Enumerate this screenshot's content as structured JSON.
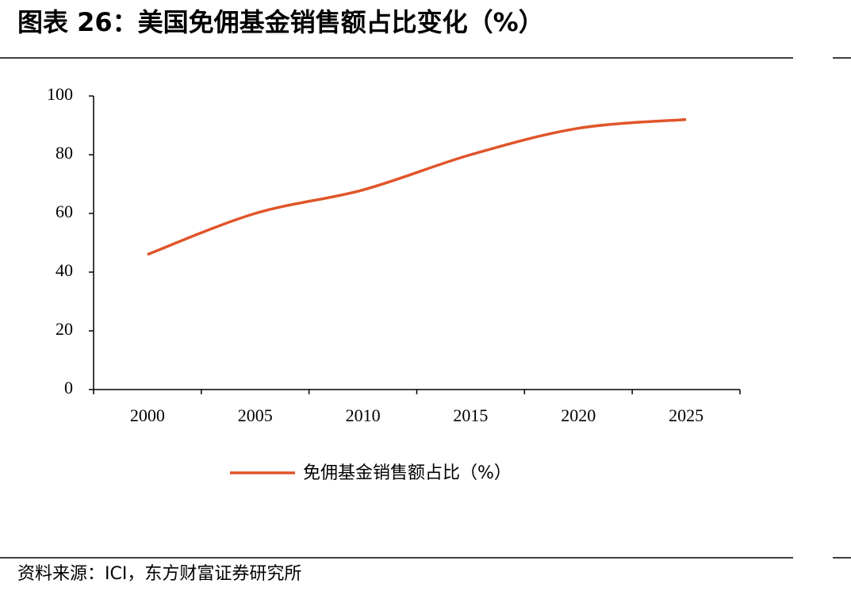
{
  "chart_data": {
    "type": "line",
    "title": "图表 26：美国免佣基金销售额占比变化（%）",
    "categories": [
      "2000",
      "2005",
      "2010",
      "2015",
      "2020",
      "2025"
    ],
    "series": [
      {
        "name": "免佣基金销售额占比（%）",
        "color": "#e0552a",
        "values": [
          46,
          60,
          68,
          80,
          89,
          92
        ]
      }
    ],
    "ylim": [
      0,
      100
    ],
    "yticks": [
      0,
      20,
      40,
      60,
      80,
      100
    ],
    "source": "资料来源：ICI，东方财富证券研究所"
  }
}
